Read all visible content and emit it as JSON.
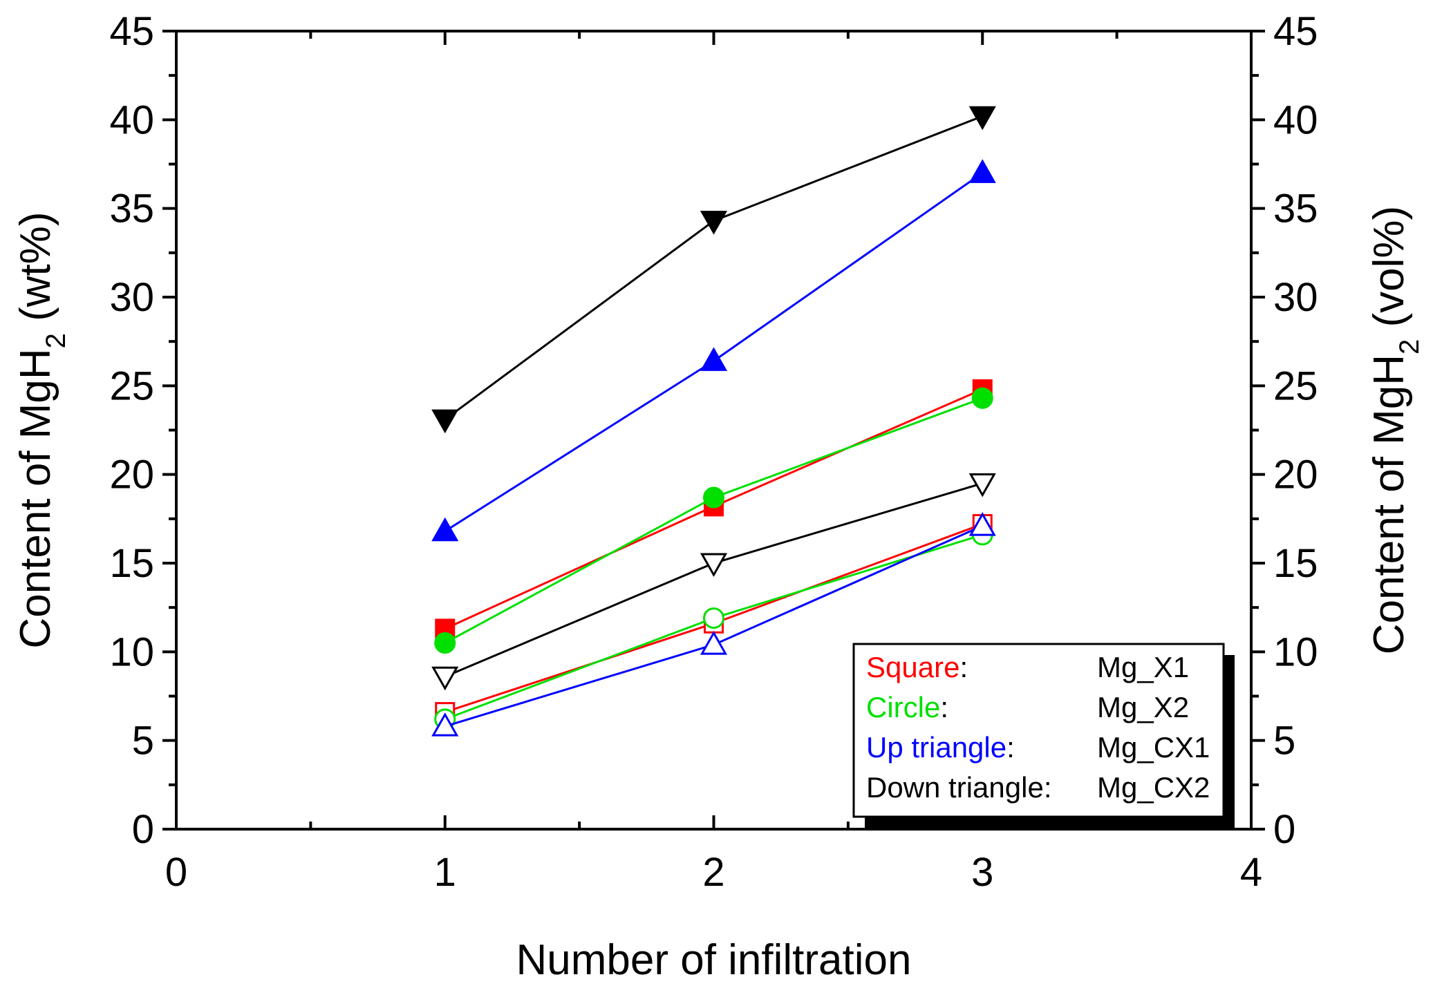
{
  "chart_data": {
    "type": "line",
    "xlabel": "Number of infiltration",
    "ylabel_left": {
      "main": "Content of MgH",
      "sub": "2",
      "unit": " (wt%)"
    },
    "ylabel_right": {
      "main": "Content of MgH",
      "sub": "2",
      "unit": " (vol%)"
    },
    "xlim": [
      0,
      4
    ],
    "ylim": [
      0,
      45
    ],
    "x_ticks": [
      0,
      1,
      2,
      3,
      4
    ],
    "y_ticks": [
      0,
      5,
      10,
      15,
      20,
      25,
      30,
      35,
      40,
      45
    ],
    "x": [
      1,
      2,
      3
    ],
    "grid": false,
    "legend_position": "bottom-right",
    "series": [
      {
        "name": "Mg_X1",
        "marker": "square",
        "filled": true,
        "color": "#ff0000",
        "values": [
          11.3,
          18.2,
          24.8
        ]
      },
      {
        "name": "Mg_X2",
        "marker": "circle",
        "filled": true,
        "color": "#00e000",
        "values": [
          10.5,
          18.7,
          24.3
        ]
      },
      {
        "name": "Mg_CX1",
        "marker": "up-triangle",
        "filled": true,
        "color": "#0000ff",
        "values": [
          16.8,
          26.4,
          37.0
        ]
      },
      {
        "name": "Mg_CX2",
        "marker": "down-triangle",
        "filled": true,
        "color": "#000000",
        "values": [
          23.1,
          34.3,
          40.2
        ]
      },
      {
        "name": "Mg_X1",
        "marker": "square",
        "filled": false,
        "color": "#ff0000",
        "values": [
          6.6,
          11.6,
          17.2
        ]
      },
      {
        "name": "Mg_X2",
        "marker": "circle",
        "filled": false,
        "color": "#00e000",
        "values": [
          6.2,
          11.9,
          16.6
        ]
      },
      {
        "name": "Mg_CX1",
        "marker": "up-triangle",
        "filled": false,
        "color": "#0000ff",
        "values": [
          5.8,
          10.4,
          17.1
        ]
      },
      {
        "name": "Mg_CX2",
        "marker": "down-triangle",
        "filled": false,
        "color": "#000000",
        "values": [
          8.6,
          15.0,
          19.5
        ]
      }
    ],
    "legend": [
      {
        "key": "Square",
        "sep": ":",
        "value": "Mg_X1",
        "color": "#ff0000"
      },
      {
        "key": "Circle",
        "sep": ":",
        "value": "Mg_X2",
        "color": "#00e000"
      },
      {
        "key": "Up triangle",
        "sep": ":",
        "value": "Mg_CX1",
        "color": "#0000ff"
      },
      {
        "key": "Down triangle",
        "sep": ":",
        "value": "Mg_CX2",
        "color": "#000000"
      }
    ]
  }
}
